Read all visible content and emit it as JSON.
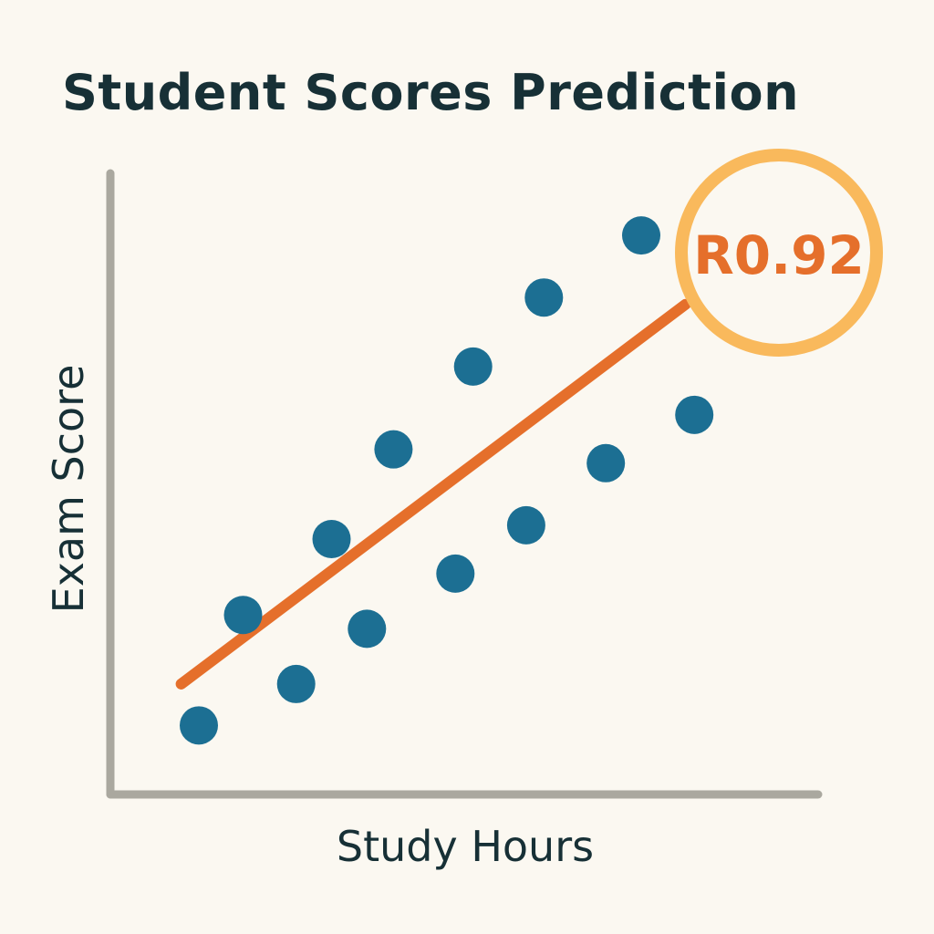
{
  "chart_data": {
    "type": "scatter",
    "title": "Student Scores Prediction",
    "xlabel": "Study Hours",
    "ylabel": "Exam Score",
    "grid": false,
    "annotation": "R0.92",
    "colors": {
      "points": "#1c6f93",
      "trend": "#e56f2b",
      "badge_ring": "#f9b95c",
      "axis": "#aaa89f",
      "text": "#173036",
      "background": "#fbf8f1"
    },
    "points": [
      {
        "x": 1.0,
        "y": 1.0
      },
      {
        "x": 1.5,
        "y": 2.6
      },
      {
        "x": 2.1,
        "y": 1.6
      },
      {
        "x": 2.5,
        "y": 3.7
      },
      {
        "x": 2.9,
        "y": 2.4
      },
      {
        "x": 3.2,
        "y": 5.0
      },
      {
        "x": 3.9,
        "y": 3.2
      },
      {
        "x": 4.1,
        "y": 6.2
      },
      {
        "x": 4.7,
        "y": 3.9
      },
      {
        "x": 4.9,
        "y": 7.2
      },
      {
        "x": 5.6,
        "y": 4.8
      },
      {
        "x": 6.0,
        "y": 8.1
      },
      {
        "x": 6.6,
        "y": 5.5
      }
    ],
    "trend_line": {
      "x": [
        0.8,
        6.5
      ],
      "y": [
        1.6,
        7.1
      ]
    },
    "xlim": [
      0,
      8
    ],
    "ylim": [
      0,
      9
    ]
  }
}
